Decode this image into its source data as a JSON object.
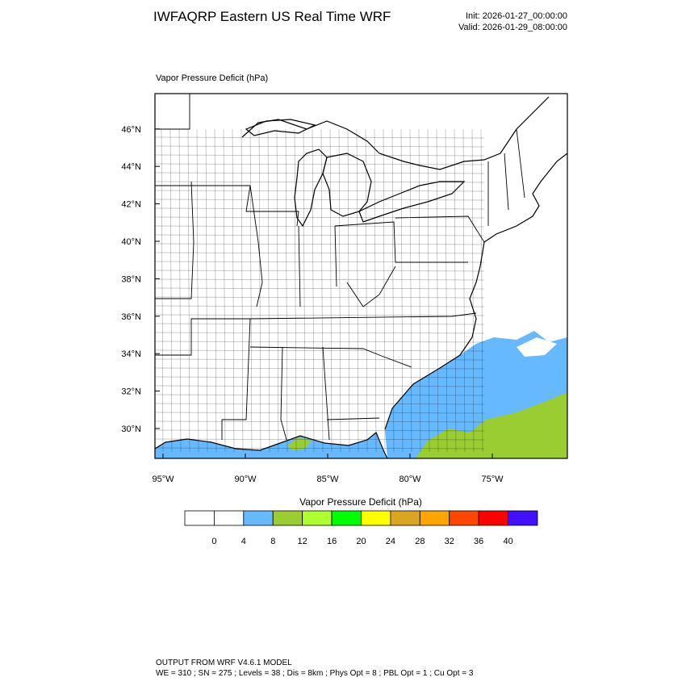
{
  "header": {
    "title": "IWFAQRP Eastern US Real Time WRF",
    "init": "Init: 2026-01-27_00:00:00",
    "valid": "Valid: 2026-01-29_08:00:00"
  },
  "map": {
    "label": "Vapor Pressure Deficit   (hPa)",
    "lat_labels": [
      "30°N",
      "32°N",
      "34°N",
      "36°N",
      "38°N",
      "40°N",
      "42°N",
      "44°N",
      "46°N"
    ],
    "lon_labels": [
      "95°W",
      "90°W",
      "85°W",
      "80°W",
      "75°W"
    ]
  },
  "colorbar": {
    "title": "Vapor Pressure Deficit  (hPa)",
    "colors": [
      "#ffffff",
      "#ffffff",
      "#66b8ff",
      "#9acd32",
      "#adff2f",
      "#00ff00",
      "#ffff00",
      "#daa520",
      "#ffa500",
      "#ff4500",
      "#ff0000",
      "#4010ff"
    ],
    "levels": [
      0,
      4,
      8,
      12,
      16,
      20,
      24,
      28,
      32,
      36,
      40
    ]
  },
  "footer": {
    "line1": "OUTPUT FROM WRF V4.6.1 MODEL",
    "line2": "WE = 310 ; SN = 275 ; Levels = 38 ; Dis = 8km ; Phys Opt = 8 ; PBL Opt = 1 ; Cu Opt = 3"
  }
}
